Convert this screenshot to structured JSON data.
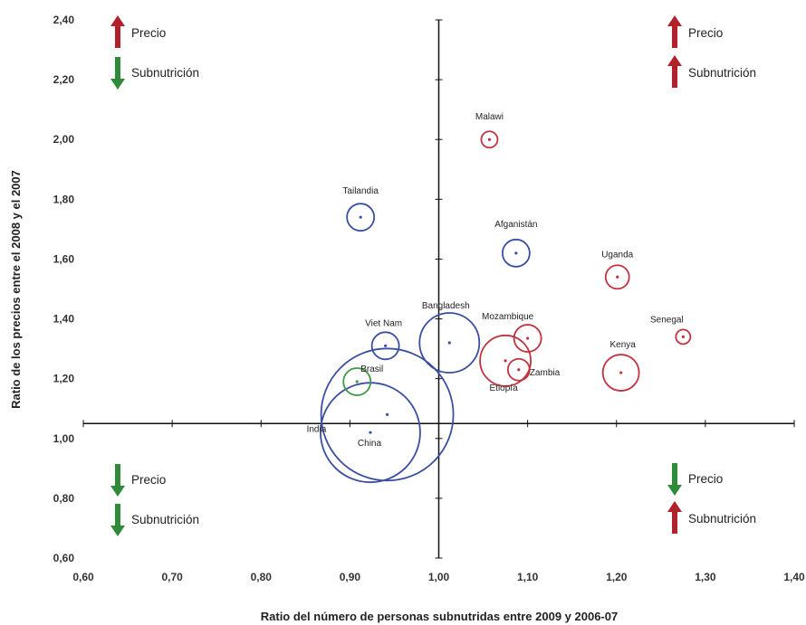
{
  "chart_data": {
    "type": "scatter",
    "xlabel": "Ratio del número de personas subnutridas entre 2009 y 2006-07",
    "ylabel": "Ratio de los precios entre el 2008 y el 2007",
    "xlim": [
      0.6,
      1.4
    ],
    "ylim": [
      0.6,
      2.4
    ],
    "x_ticks": [
      "0,60",
      "0,70",
      "0,80",
      "0,90",
      "1,00",
      "1,10",
      "1,20",
      "1,30",
      "1,40"
    ],
    "y_ticks": [
      "0,60",
      "0,80",
      "1,00",
      "1,20",
      "1,40",
      "1,60",
      "1,80",
      "2,00",
      "2,20",
      "2,40"
    ],
    "crossing": {
      "x": 1.0,
      "y": 1.05
    },
    "colors": {
      "blue": "#3a4fa0",
      "red": "#c0333f",
      "green": "#3f9a45",
      "arrow_up": "#b2202a",
      "arrow_down": "#2f8a3a"
    },
    "points": [
      {
        "label": "Malawi",
        "x": 1.057,
        "y": 2.0,
        "size": 9,
        "color": "red"
      },
      {
        "label": "Tailandia",
        "x": 0.912,
        "y": 1.74,
        "size": 15,
        "color": "blue"
      },
      {
        "label": "Afganistán",
        "x": 1.087,
        "y": 1.62,
        "size": 15,
        "color": "blue"
      },
      {
        "label": "Uganda",
        "x": 1.201,
        "y": 1.54,
        "size": 13,
        "color": "red"
      },
      {
        "label": "Bangladesh",
        "x": 1.012,
        "y": 1.32,
        "size": 33,
        "color": "blue"
      },
      {
        "label": "Viet Nam",
        "x": 0.94,
        "y": 1.31,
        "size": 15,
        "color": "blue"
      },
      {
        "label": "Mozambique",
        "x": 1.1,
        "y": 1.335,
        "size": 15,
        "color": "red"
      },
      {
        "label": "Senegal",
        "x": 1.275,
        "y": 1.34,
        "size": 8,
        "color": "red"
      },
      {
        "label": "Etiopía",
        "x": 1.075,
        "y": 1.26,
        "size": 28,
        "color": "red"
      },
      {
        "label": "Zambia",
        "x": 1.09,
        "y": 1.23,
        "size": 12,
        "color": "red"
      },
      {
        "label": "Kenya",
        "x": 1.205,
        "y": 1.22,
        "size": 20,
        "color": "red"
      },
      {
        "label": "Brasil",
        "x": 0.908,
        "y": 1.19,
        "size": 15,
        "color": "green"
      },
      {
        "label": "India",
        "x": 0.942,
        "y": 1.08,
        "size": 73,
        "color": "blue"
      },
      {
        "label": "China",
        "x": 0.923,
        "y": 1.02,
        "size": 55,
        "color": "blue"
      }
    ],
    "quadrants": [
      {
        "position": "top-left",
        "items": [
          {
            "dir": "up",
            "text": "Precio"
          },
          {
            "dir": "down",
            "text": "Subnutrición"
          }
        ]
      },
      {
        "position": "top-right",
        "items": [
          {
            "dir": "up",
            "text": "Precio"
          },
          {
            "dir": "up",
            "text": "Subnutrición"
          }
        ]
      },
      {
        "position": "bottom-left",
        "items": [
          {
            "dir": "down",
            "text": "Precio"
          },
          {
            "dir": "down",
            "text": "Subnutrición"
          }
        ]
      },
      {
        "position": "bottom-right",
        "items": [
          {
            "dir": "down",
            "text": "Precio"
          },
          {
            "dir": "up",
            "text": "Subnutrición"
          }
        ]
      }
    ]
  }
}
